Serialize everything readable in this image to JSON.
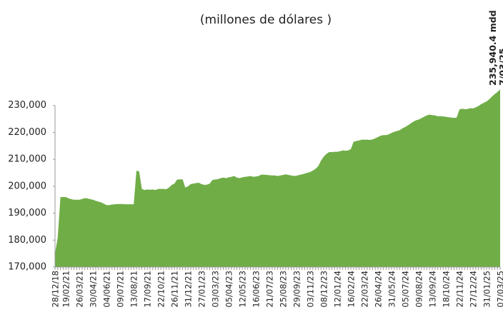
{
  "chart_data": {
    "type": "area",
    "title": "(millones de dólares )",
    "annotations": [
      "235,940.4 mdd",
      "7/03/25"
    ],
    "color": "#70ad47",
    "ylim": [
      170000,
      240000
    ],
    "yticks": [
      {
        "value": 170000,
        "label": "170,000"
      },
      {
        "value": 180000,
        "label": "180,000"
      },
      {
        "value": 190000,
        "label": "190,000"
      },
      {
        "value": 200000,
        "label": "200,000"
      },
      {
        "value": 210000,
        "label": "210,000"
      },
      {
        "value": 220000,
        "label": "220,000"
      },
      {
        "value": 230000,
        "label": "230,000"
      }
    ],
    "categories": [
      "28/12/18",
      null,
      null,
      null,
      "19/02/21",
      null,
      null,
      null,
      null,
      "26/03/21",
      null,
      null,
      null,
      null,
      "30/04/21",
      null,
      null,
      null,
      null,
      "04/06/21",
      null,
      null,
      null,
      null,
      "09/07/21",
      null,
      null,
      null,
      null,
      "13/08/21",
      null,
      null,
      null,
      null,
      "17/09/21",
      null,
      null,
      null,
      null,
      "22/10/21",
      null,
      null,
      null,
      null,
      "26/11/21",
      null,
      null,
      null,
      null,
      "31/12/21",
      null,
      null,
      null,
      null,
      "27/01/23",
      null,
      null,
      null,
      null,
      "03/03/23",
      null,
      null,
      null,
      null,
      "05/04/23",
      null,
      null,
      null,
      null,
      "12/05/23",
      null,
      null,
      null,
      null,
      "16/06/23",
      null,
      null,
      null,
      null,
      "21/07/23",
      null,
      null,
      null,
      null,
      "25/08/23",
      null,
      null,
      null,
      null,
      "29/09/23",
      null,
      null,
      null,
      null,
      "03/11/23",
      null,
      null,
      null,
      null,
      "08/12/23",
      null,
      null,
      null,
      null,
      "12/01/24",
      null,
      null,
      null,
      null,
      "16/02/24",
      null,
      null,
      null,
      null,
      "22/03/24",
      null,
      null,
      null,
      null,
      "26/04/24",
      null,
      null,
      null,
      null,
      "31/05/24",
      null,
      null,
      null,
      null,
      "05/07/24",
      null,
      null,
      null,
      null,
      "09/08/24",
      null,
      null,
      null,
      null,
      "13/09/24",
      null,
      null,
      null,
      null,
      "18/10/24",
      null,
      null,
      null,
      null,
      "22/11/24",
      null,
      null,
      null,
      null,
      "27/12/24",
      null,
      null,
      null,
      null,
      "31/01/25",
      null,
      null,
      null,
      null,
      "07/03/25"
    ],
    "values": [
      175000,
      181000,
      196000,
      196000,
      196000,
      195500,
      195200,
      195000,
      195000,
      195000,
      195300,
      195600,
      195500,
      195200,
      195000,
      194600,
      194300,
      194000,
      193500,
      193000,
      193000,
      193200,
      193300,
      193400,
      193400,
      193400,
      193300,
      193300,
      193300,
      193300,
      205800,
      205500,
      199000,
      198600,
      198800,
      198700,
      198800,
      198600,
      199000,
      199000,
      199000,
      198900,
      199500,
      200500,
      201000,
      202500,
      202500,
      202600,
      199500,
      200000,
      200800,
      201000,
      201200,
      201300,
      200800,
      200500,
      200600,
      201000,
      202300,
      202500,
      202600,
      203000,
      203200,
      203000,
      203300,
      203500,
      203800,
      203200,
      203000,
      203300,
      203500,
      203600,
      203800,
      203500,
      203600,
      203800,
      204300,
      204300,
      204200,
      204100,
      204000,
      204000,
      203800,
      204000,
      204200,
      204400,
      204200,
      204000,
      203800,
      203900,
      204200,
      204400,
      204700,
      205000,
      205300,
      205800,
      206500,
      207500,
      209500,
      211000,
      212000,
      212700,
      212700,
      212800,
      212800,
      213000,
      213300,
      213200,
      213300,
      213800,
      216500,
      216800,
      217000,
      217300,
      217300,
      217300,
      217200,
      217400,
      217800,
      218300,
      218800,
      219000,
      219000,
      219300,
      219800,
      220200,
      220500,
      220800,
      221500,
      222000,
      222600,
      223300,
      224000,
      224500,
      224800,
      225300,
      225800,
      226300,
      226600,
      226400,
      226300,
      226000,
      226000,
      225900,
      225800,
      225600,
      225500,
      225400,
      225500,
      228500,
      228800,
      228600,
      228700,
      229000,
      228900,
      229300,
      229800,
      230500,
      231000,
      231500,
      232300,
      233300,
      234200,
      235000,
      235940.4
    ]
  }
}
